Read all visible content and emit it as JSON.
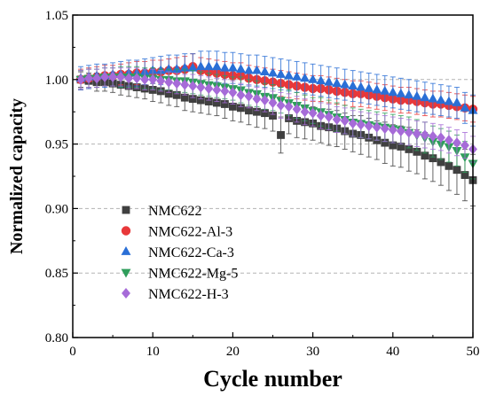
{
  "chart_data": {
    "type": "scatter",
    "title": "",
    "xlabel": "Cycle number",
    "ylabel": "Normalized capacity",
    "xlim": [
      0,
      50
    ],
    "ylim": [
      0.8,
      1.05
    ],
    "xticks": [
      0,
      10,
      20,
      30,
      40,
      50
    ],
    "yticks": [
      0.8,
      0.85,
      0.9,
      0.95,
      1.0,
      1.05
    ],
    "xtick_labels": [
      "0",
      "10",
      "20",
      "30",
      "40",
      "50"
    ],
    "ytick_labels": [
      "0.80",
      "0.85",
      "0.90",
      "0.95",
      "1.00",
      "1.05"
    ],
    "grid": "horizontal-dashed",
    "legend_position": "bottom-left",
    "x": [
      1,
      2,
      3,
      4,
      5,
      6,
      7,
      8,
      9,
      10,
      11,
      12,
      13,
      14,
      15,
      16,
      17,
      18,
      19,
      20,
      21,
      22,
      23,
      24,
      25,
      26,
      27,
      28,
      29,
      30,
      31,
      32,
      33,
      34,
      35,
      36,
      37,
      38,
      39,
      40,
      41,
      42,
      43,
      44,
      45,
      46,
      47,
      48,
      49,
      50
    ],
    "series": [
      {
        "name": "NMC622",
        "marker": "square",
        "color": "#404040",
        "values": [
          1.0,
          0.999,
          0.998,
          0.998,
          0.997,
          0.996,
          0.995,
          0.994,
          0.993,
          0.992,
          0.991,
          0.989,
          0.988,
          0.986,
          0.985,
          0.984,
          0.983,
          0.982,
          0.981,
          0.979,
          0.978,
          0.976,
          0.975,
          0.974,
          0.972,
          0.957,
          0.97,
          0.968,
          0.967,
          0.966,
          0.964,
          0.963,
          0.962,
          0.96,
          0.958,
          0.957,
          0.955,
          0.953,
          0.951,
          0.949,
          0.948,
          0.946,
          0.944,
          0.941,
          0.939,
          0.936,
          0.933,
          0.93,
          0.926,
          0.922
        ],
        "errors": [
          0.006,
          0.006,
          0.007,
          0.007,
          0.007,
          0.008,
          0.008,
          0.008,
          0.008,
          0.009,
          0.009,
          0.009,
          0.009,
          0.01,
          0.01,
          0.01,
          0.01,
          0.01,
          0.011,
          0.011,
          0.011,
          0.011,
          0.012,
          0.012,
          0.012,
          0.014,
          0.012,
          0.013,
          0.013,
          0.013,
          0.013,
          0.014,
          0.014,
          0.014,
          0.014,
          0.015,
          0.015,
          0.015,
          0.016,
          0.016,
          0.016,
          0.017,
          0.017,
          0.018,
          0.018,
          0.018,
          0.019,
          0.019,
          0.02,
          0.02
        ]
      },
      {
        "name": "NMC622-Al-3",
        "marker": "circle",
        "color": "#e8383a",
        "values": [
          1.0,
          1.001,
          1.002,
          1.003,
          1.003,
          1.004,
          1.004,
          1.005,
          1.005,
          1.006,
          1.006,
          1.007,
          1.007,
          1.008,
          1.01,
          1.007,
          1.006,
          1.005,
          1.004,
          1.003,
          1.003,
          1.001,
          1.0,
          0.999,
          0.998,
          0.997,
          0.996,
          0.995,
          0.994,
          0.993,
          0.993,
          0.992,
          0.991,
          0.99,
          0.989,
          0.989,
          0.988,
          0.987,
          0.986,
          0.985,
          0.984,
          0.984,
          0.983,
          0.982,
          0.981,
          0.981,
          0.98,
          0.979,
          0.978,
          0.977
        ],
        "errors": [
          0.008,
          0.008,
          0.008,
          0.008,
          0.008,
          0.008,
          0.009,
          0.009,
          0.009,
          0.009,
          0.009,
          0.009,
          0.01,
          0.01,
          0.01,
          0.01,
          0.01,
          0.01,
          0.01,
          0.01,
          0.01,
          0.01,
          0.01,
          0.01,
          0.01,
          0.01,
          0.01,
          0.01,
          0.01,
          0.01,
          0.01,
          0.01,
          0.01,
          0.01,
          0.01,
          0.01,
          0.01,
          0.01,
          0.01,
          0.01,
          0.01,
          0.01,
          0.01,
          0.01,
          0.01,
          0.01,
          0.01,
          0.01,
          0.01,
          0.01
        ]
      },
      {
        "name": "NMC622-Ca-3",
        "marker": "triangle-up",
        "color": "#2a6fd6",
        "values": [
          1.001,
          1.002,
          1.003,
          1.003,
          1.004,
          1.004,
          1.005,
          1.005,
          1.006,
          1.007,
          1.007,
          1.008,
          1.008,
          1.009,
          1.009,
          1.01,
          1.01,
          1.01,
          1.009,
          1.009,
          1.008,
          1.007,
          1.007,
          1.006,
          1.005,
          1.004,
          1.003,
          1.002,
          1.001,
          1.0,
          0.999,
          0.998,
          0.997,
          0.996,
          0.995,
          0.994,
          0.993,
          0.992,
          0.991,
          0.99,
          0.989,
          0.988,
          0.987,
          0.986,
          0.985,
          0.984,
          0.983,
          0.982,
          0.978,
          0.976
        ],
        "errors": [
          0.009,
          0.009,
          0.009,
          0.009,
          0.009,
          0.01,
          0.01,
          0.01,
          0.01,
          0.01,
          0.011,
          0.011,
          0.011,
          0.011,
          0.011,
          0.012,
          0.012,
          0.012,
          0.012,
          0.012,
          0.012,
          0.012,
          0.012,
          0.012,
          0.012,
          0.012,
          0.012,
          0.012,
          0.012,
          0.012,
          0.012,
          0.012,
          0.012,
          0.012,
          0.012,
          0.012,
          0.012,
          0.012,
          0.012,
          0.012,
          0.012,
          0.012,
          0.012,
          0.012,
          0.012,
          0.012,
          0.012,
          0.012,
          0.012,
          0.012
        ]
      },
      {
        "name": "NMC622-Mg-5",
        "marker": "triangle-down",
        "color": "#2f9e5b",
        "values": [
          1.0,
          1.001,
          1.001,
          1.002,
          1.002,
          1.002,
          1.002,
          1.002,
          1.001,
          1.001,
          1.0,
          1.0,
          0.999,
          0.999,
          0.998,
          0.997,
          0.996,
          0.995,
          0.994,
          0.993,
          0.992,
          0.99,
          0.989,
          0.987,
          0.986,
          0.984,
          0.982,
          0.98,
          0.978,
          0.976,
          0.975,
          0.973,
          0.971,
          0.969,
          0.967,
          0.966,
          0.965,
          0.964,
          0.963,
          0.962,
          0.961,
          0.959,
          0.957,
          0.955,
          0.952,
          0.95,
          0.948,
          0.945,
          0.94,
          0.935
        ],
        "errors": [
          0.007,
          0.007,
          0.007,
          0.007,
          0.007,
          0.008,
          0.008,
          0.008,
          0.008,
          0.008,
          0.008,
          0.008,
          0.009,
          0.009,
          0.009,
          0.009,
          0.009,
          0.009,
          0.009,
          0.009,
          0.01,
          0.01,
          0.01,
          0.01,
          0.01,
          0.01,
          0.01,
          0.01,
          0.01,
          0.01,
          0.011,
          0.011,
          0.011,
          0.011,
          0.011,
          0.011,
          0.011,
          0.011,
          0.011,
          0.011,
          0.011,
          0.012,
          0.012,
          0.012,
          0.012,
          0.012,
          0.012,
          0.012,
          0.012,
          0.012
        ]
      },
      {
        "name": "NMC622-H-3",
        "marker": "diamond",
        "color": "#a66bd8",
        "values": [
          1.0,
          1.001,
          1.001,
          1.002,
          1.002,
          1.002,
          1.001,
          1.001,
          1.0,
          1.0,
          0.999,
          0.998,
          0.997,
          0.996,
          0.995,
          0.994,
          0.993,
          0.992,
          0.991,
          0.99,
          0.988,
          0.987,
          0.985,
          0.984,
          0.982,
          0.98,
          0.979,
          0.977,
          0.975,
          0.974,
          0.972,
          0.971,
          0.969,
          0.968,
          0.966,
          0.965,
          0.964,
          0.963,
          0.962,
          0.961,
          0.96,
          0.959,
          0.958,
          0.957,
          0.956,
          0.955,
          0.953,
          0.951,
          0.949,
          0.946
        ],
        "errors": [
          0.007,
          0.007,
          0.007,
          0.007,
          0.007,
          0.007,
          0.008,
          0.008,
          0.008,
          0.008,
          0.008,
          0.008,
          0.008,
          0.008,
          0.009,
          0.009,
          0.009,
          0.009,
          0.009,
          0.009,
          0.009,
          0.009,
          0.009,
          0.009,
          0.009,
          0.01,
          0.01,
          0.01,
          0.01,
          0.01,
          0.01,
          0.01,
          0.01,
          0.01,
          0.01,
          0.01,
          0.01,
          0.01,
          0.01,
          0.01,
          0.01,
          0.01,
          0.01,
          0.01,
          0.01,
          0.01,
          0.01,
          0.01,
          0.01,
          0.01
        ]
      }
    ]
  }
}
